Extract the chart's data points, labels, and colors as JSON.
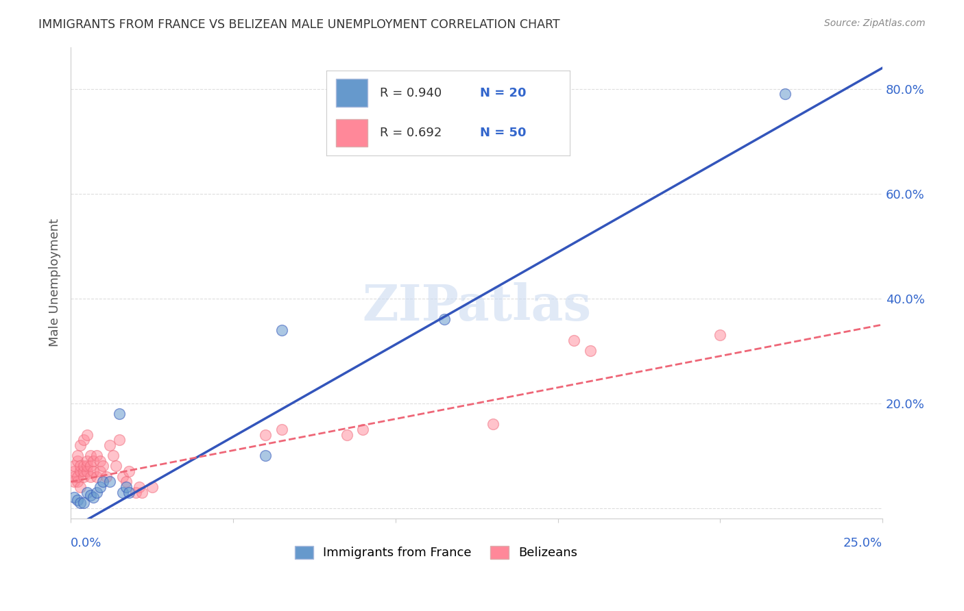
{
  "title": "IMMIGRANTS FROM FRANCE VS BELIZEAN MALE UNEMPLOYMENT CORRELATION CHART",
  "source": "Source: ZipAtlas.com",
  "ylabel": "Male Unemployment",
  "y_ticks": [
    0.0,
    0.2,
    0.4,
    0.6,
    0.8
  ],
  "y_tick_labels": [
    "",
    "20.0%",
    "40.0%",
    "60.0%",
    "80.0%"
  ],
  "x_lim": [
    0.0,
    0.25
  ],
  "y_lim": [
    -0.02,
    0.88
  ],
  "blue_color": "#6699cc",
  "pink_color": "#ff8899",
  "trendline_blue_color": "#3355bb",
  "trendline_pink_color": "#ee6677",
  "watermark": "ZIPatlas",
  "blue_scatter": [
    [
      0.001,
      0.02
    ],
    [
      0.002,
      0.015
    ],
    [
      0.003,
      0.01
    ],
    [
      0.004,
      0.01
    ],
    [
      0.005,
      0.03
    ],
    [
      0.006,
      0.025
    ],
    [
      0.007,
      0.02
    ],
    [
      0.008,
      0.03
    ],
    [
      0.009,
      0.04
    ],
    [
      0.01,
      0.05
    ],
    [
      0.012,
      0.05
    ],
    [
      0.015,
      0.18
    ],
    [
      0.016,
      0.03
    ],
    [
      0.017,
      0.04
    ],
    [
      0.018,
      0.03
    ],
    [
      0.06,
      0.1
    ],
    [
      0.065,
      0.34
    ],
    [
      0.115,
      0.36
    ],
    [
      0.145,
      0.7
    ],
    [
      0.22,
      0.79
    ]
  ],
  "pink_scatter": [
    [
      0.001,
      0.05
    ],
    [
      0.001,
      0.06
    ],
    [
      0.001,
      0.07
    ],
    [
      0.001,
      0.08
    ],
    [
      0.002,
      0.05
    ],
    [
      0.002,
      0.06
    ],
    [
      0.002,
      0.09
    ],
    [
      0.002,
      0.1
    ],
    [
      0.003,
      0.04
    ],
    [
      0.003,
      0.07
    ],
    [
      0.003,
      0.08
    ],
    [
      0.003,
      0.12
    ],
    [
      0.004,
      0.06
    ],
    [
      0.004,
      0.07
    ],
    [
      0.004,
      0.08
    ],
    [
      0.004,
      0.13
    ],
    [
      0.005,
      0.07
    ],
    [
      0.005,
      0.08
    ],
    [
      0.005,
      0.09
    ],
    [
      0.005,
      0.14
    ],
    [
      0.006,
      0.06
    ],
    [
      0.006,
      0.08
    ],
    [
      0.006,
      0.1
    ],
    [
      0.007,
      0.07
    ],
    [
      0.007,
      0.09
    ],
    [
      0.008,
      0.06
    ],
    [
      0.008,
      0.1
    ],
    [
      0.009,
      0.07
    ],
    [
      0.009,
      0.09
    ],
    [
      0.01,
      0.08
    ],
    [
      0.011,
      0.06
    ],
    [
      0.012,
      0.12
    ],
    [
      0.013,
      0.1
    ],
    [
      0.014,
      0.08
    ],
    [
      0.015,
      0.13
    ],
    [
      0.016,
      0.06
    ],
    [
      0.017,
      0.05
    ],
    [
      0.018,
      0.07
    ],
    [
      0.02,
      0.03
    ],
    [
      0.021,
      0.04
    ],
    [
      0.022,
      0.03
    ],
    [
      0.025,
      0.04
    ],
    [
      0.06,
      0.14
    ],
    [
      0.065,
      0.15
    ],
    [
      0.085,
      0.14
    ],
    [
      0.09,
      0.15
    ],
    [
      0.13,
      0.16
    ],
    [
      0.155,
      0.32
    ],
    [
      0.16,
      0.3
    ],
    [
      0.2,
      0.33
    ]
  ],
  "blue_line_x": [
    0.0,
    0.25
  ],
  "blue_line_y": [
    -0.04,
    0.84
  ],
  "pink_line_x": [
    0.0,
    0.25
  ],
  "pink_line_y": [
    0.05,
    0.35
  ],
  "legend_r1": "R = 0.940",
  "legend_n1": "N = 20",
  "legend_r2": "R = 0.692",
  "legend_n2": "N = 50",
  "bottom_legend_labels": [
    "Immigrants from France",
    "Belizeans"
  ]
}
